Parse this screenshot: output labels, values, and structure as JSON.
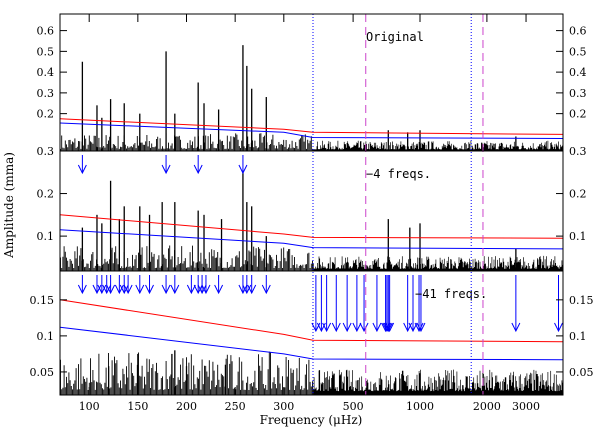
{
  "chart_data": {
    "type": "line",
    "xlabel": "Frequency (μHz)",
    "ylabel": "Amplitude (mma)",
    "x_break": 300,
    "x_ticks_left": [
      "100",
      "150",
      "200",
      "250",
      "300"
    ],
    "x_ticks_right": [
      "500",
      "1000",
      "2000",
      "3000"
    ],
    "x_tick_values_left": [
      100,
      150,
      200,
      250,
      300
    ],
    "x_tick_values_right": [
      500,
      1000,
      2000,
      3000
    ],
    "x_range_left": [
      70,
      330
    ],
    "x_range_right": [
      330,
      4400
    ],
    "right_scale": "log",
    "vlines_dotted": [
      320,
      1700
    ],
    "vlines_dashed": [
      570,
      1920
    ],
    "panels": [
      {
        "label": "Original",
        "ylim": [
          0.02,
          0.68
        ],
        "yticks": [
          0.2,
          0.3,
          0.4,
          0.5,
          0.6
        ],
        "ytick_labels": [
          "0.2",
          "0.3",
          "0.4",
          "0.5",
          "0.6"
        ],
        "noise_level": 0.04,
        "noise_level_right": 0.025,
        "peaks": [
          [
            93,
            0.45
          ],
          [
            108,
            0.24
          ],
          [
            113,
            0.18
          ],
          [
            122,
            0.27
          ],
          [
            136,
            0.25
          ],
          [
            152,
            0.2
          ],
          [
            179,
            0.5
          ],
          [
            188,
            0.2
          ],
          [
            212,
            0.35
          ],
          [
            218,
            0.25
          ],
          [
            233,
            0.22
          ],
          [
            258,
            0.53
          ],
          [
            262,
            0.43
          ],
          [
            267,
            0.32
          ],
          [
            282,
            0.28
          ],
          [
            720,
            0.12
          ],
          [
            880,
            0.11
          ],
          [
            1000,
            0.12
          ],
          [
            2700,
            0.09
          ]
        ],
        "threshold_red": {
          "x": [
            70,
            300,
            330,
            4400
          ],
          "y": [
            0.175,
            0.125,
            0.11,
            0.1
          ]
        },
        "threshold_blue": {
          "x": [
            70,
            300,
            330,
            4400
          ],
          "y": [
            0.155,
            0.11,
            0.085,
            0.08
          ]
        },
        "arrows": []
      },
      {
        "label": "−4 freqs.",
        "ylim": [
          0.018,
          0.3
        ],
        "yticks": [
          0.1,
          0.2,
          0.3
        ],
        "ytick_labels": [
          "0.1",
          "0.2",
          "0.3"
        ],
        "noise_level": 0.028,
        "noise_level_right": 0.018,
        "peaks": [
          [
            93,
            0.12
          ],
          [
            108,
            0.15
          ],
          [
            113,
            0.13
          ],
          [
            122,
            0.23
          ],
          [
            131,
            0.14
          ],
          [
            136,
            0.17
          ],
          [
            152,
            0.17
          ],
          [
            162,
            0.15
          ],
          [
            175,
            0.18
          ],
          [
            188,
            0.18
          ],
          [
            212,
            0.16
          ],
          [
            218,
            0.15
          ],
          [
            236,
            0.14
          ],
          [
            258,
            0.25
          ],
          [
            262,
            0.18
          ],
          [
            267,
            0.17
          ],
          [
            282,
            0.1
          ],
          [
            720,
            0.14
          ],
          [
            900,
            0.12
          ],
          [
            1000,
            0.13
          ],
          [
            2700,
            0.07
          ]
        ],
        "threshold_red": {
          "x": [
            70,
            300,
            330,
            4400
          ],
          "y": [
            0.15,
            0.105,
            0.097,
            0.095
          ]
        },
        "threshold_blue": {
          "x": [
            70,
            300,
            330,
            4400
          ],
          "y": [
            0.115,
            0.083,
            0.073,
            0.07
          ]
        },
        "arrows": [
          93,
          179,
          212,
          258
        ]
      },
      {
        "label": "−41 freqs.",
        "ylim": [
          0.018,
          0.19
        ],
        "yticks": [
          0.05,
          0.1,
          0.15
        ],
        "ytick_labels": [
          "0.05",
          "0.1",
          "0.15"
        ],
        "noise_level": 0.028,
        "noise_level_right": 0.018,
        "peaks": [
          [
            150,
            0.075
          ],
          [
            185,
            0.075
          ],
          [
            188,
            0.08
          ],
          [
            240,
            0.06
          ],
          [
            200,
            0.058
          ],
          [
            120,
            0.058
          ]
        ],
        "threshold_red": {
          "x": [
            70,
            300,
            330,
            4400
          ],
          "y": [
            0.15,
            0.102,
            0.094,
            0.092
          ]
        },
        "threshold_blue": {
          "x": [
            70,
            300,
            330,
            4400
          ],
          "y": [
            0.112,
            0.075,
            0.068,
            0.067
          ]
        },
        "arrows": [
          93,
          108,
          113,
          118,
          122,
          131,
          136,
          140,
          152,
          162,
          179,
          188,
          205,
          212,
          216,
          220,
          233,
          258,
          262,
          267,
          282,
          340,
          360,
          380,
          420,
          470,
          520,
          560,
          640,
          700,
          710,
          720,
          730,
          880,
          930,
          990,
          1010,
          2700,
          4200
        ]
      }
    ]
  }
}
